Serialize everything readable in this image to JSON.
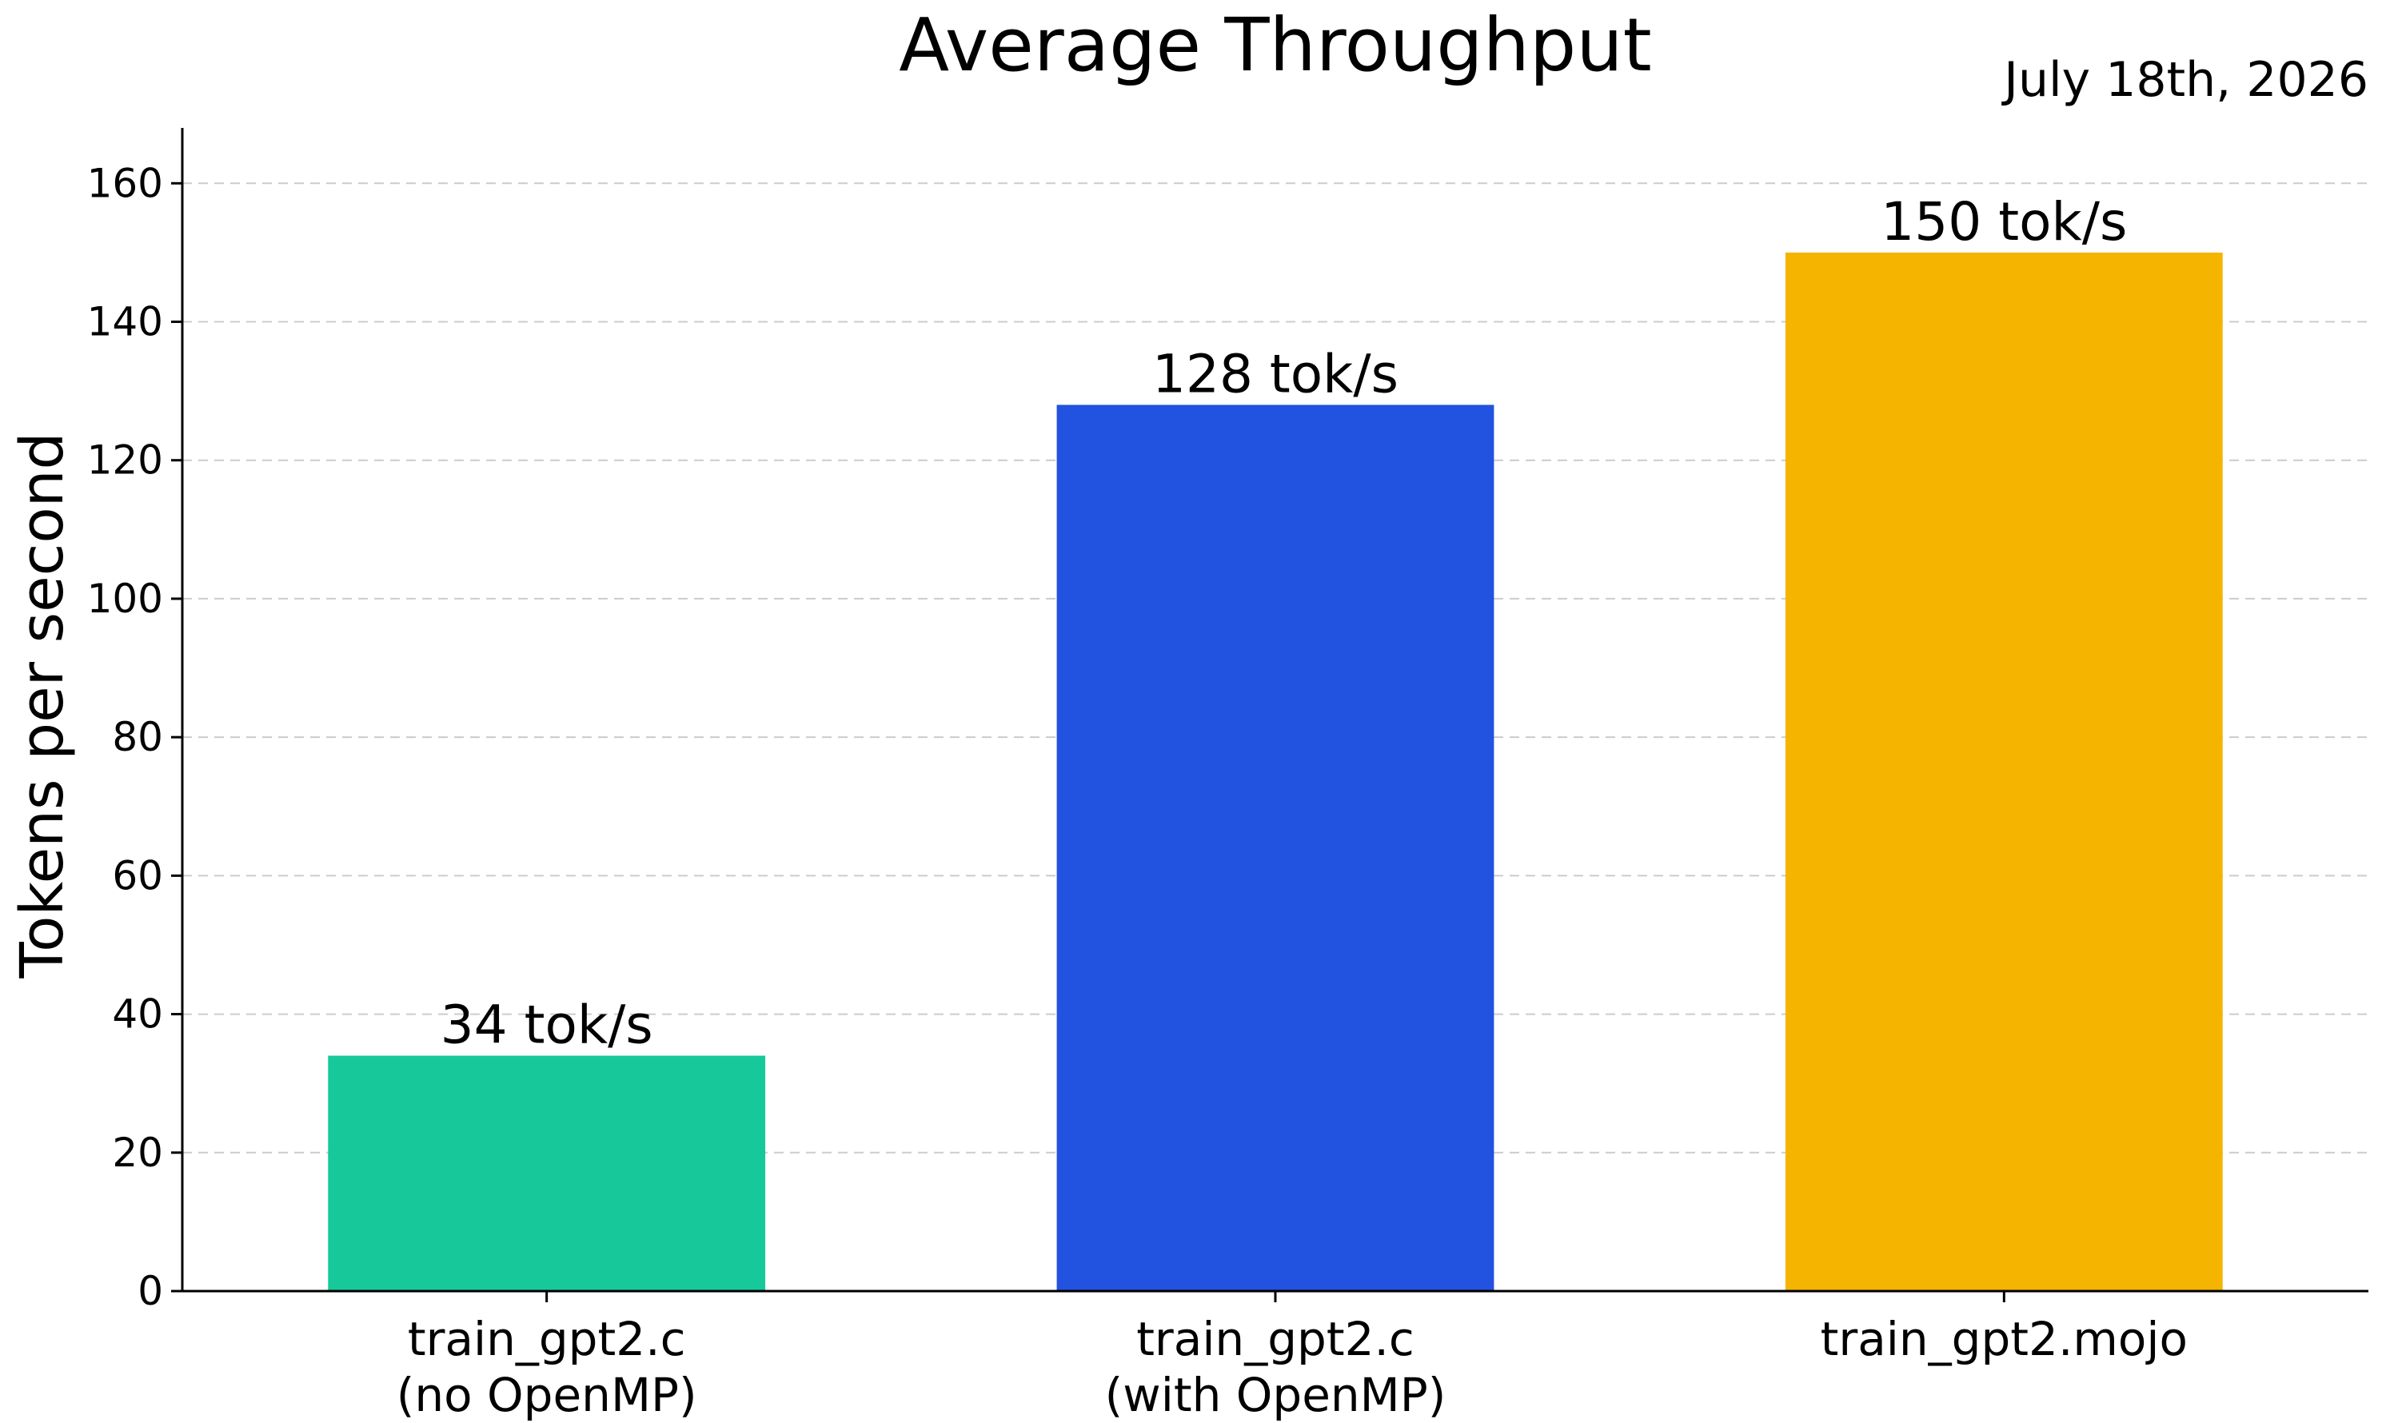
{
  "chart_data": {
    "type": "bar",
    "title": "Average Throughput",
    "subtitle": "July 18th, 2026",
    "xlabel": "",
    "ylabel": "Tokens per second",
    "ylim": [
      0,
      168
    ],
    "yticks": [
      0,
      20,
      40,
      60,
      80,
      100,
      120,
      140,
      160
    ],
    "grid": true,
    "categories": [
      [
        "train_gpt2.c",
        "(no OpenMP)"
      ],
      [
        "train_gpt2.c",
        "(with OpenMP)"
      ],
      [
        "train_gpt2.mojo"
      ]
    ],
    "values": [
      34,
      128,
      150
    ],
    "data_labels": [
      "34 tok/s",
      "128 tok/s",
      "150 tok/s"
    ],
    "colors": [
      "#17c99a",
      "#2152e0",
      "#f5b400"
    ]
  }
}
